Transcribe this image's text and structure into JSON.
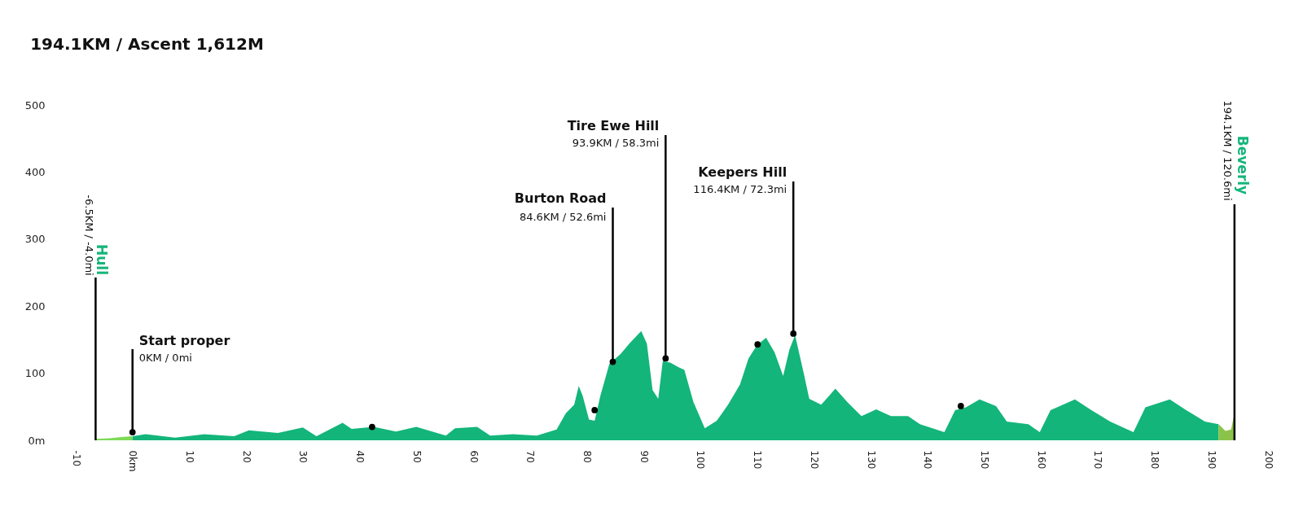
{
  "chart_data": {
    "type": "area",
    "title": "194.1KM / Ascent 1,612M",
    "xlim": [
      -10,
      200
    ],
    "xticks": [
      {
        "value": -10,
        "label": "-10"
      },
      {
        "value": 0,
        "label": "0km"
      },
      10,
      20,
      30,
      40,
      50,
      60,
      70,
      80,
      90,
      100,
      110,
      120,
      130,
      140,
      150,
      160,
      170,
      180,
      190,
      200
    ],
    "ylim": [
      0,
      500
    ],
    "yticks": [
      {
        "value": 0,
        "label": "0m"
      },
      100,
      200,
      300,
      400,
      500
    ],
    "grid": false,
    "series": [
      {
        "color": "#7ed957",
        "x": [
          -6.5,
          -4,
          -2,
          0
        ],
        "values": [
          2,
          3,
          5,
          6
        ]
      },
      {
        "color": "#13b57a",
        "x": [
          0,
          2.3,
          7.5,
          12.7,
          17.9,
          20.5,
          25.6,
          30,
          32.4,
          37,
          38.6,
          42.5,
          46.4,
          50,
          55.2,
          56.8,
          60.7,
          63,
          67,
          71.2,
          74.7,
          76.3,
          77.8,
          78.6,
          79.3,
          80.4,
          81.4,
          82.4,
          84,
          86,
          87.5,
          89.6,
          90.6,
          91.6,
          92.6,
          93.4,
          94.7,
          96.2,
          97.2,
          98.8,
          100.8,
          102.9,
          104.9,
          107,
          108.5,
          110,
          111.6,
          113.1,
          114.6,
          115.7,
          116.7,
          118.2,
          119.2,
          121.3,
          123.8,
          125.9,
          128.4,
          131,
          133.6,
          136.6,
          138.7,
          143,
          144.9,
          146.8,
          149.2,
          152.1,
          154,
          157.8,
          159.8,
          161.7,
          166,
          168.9,
          172.2,
          176.3,
          178.4,
          182.7,
          185.6,
          188.9,
          191.3
        ],
        "values": [
          6,
          9,
          4,
          9,
          6,
          15,
          11,
          19,
          6,
          26,
          17,
          20,
          13,
          20,
          7,
          18,
          20,
          7,
          9,
          7,
          16,
          40,
          53,
          81,
          66,
          31,
          29,
          66,
          114,
          129,
          144,
          163,
          144,
          75,
          62,
          118,
          116,
          109,
          105,
          57,
          18,
          29,
          53,
          83,
          122,
          142,
          153,
          131,
          96,
          135,
          157,
          101,
          62,
          53,
          77,
          57,
          36,
          46,
          36,
          36,
          24,
          12,
          45,
          49,
          61,
          51,
          28,
          24,
          12,
          45,
          61,
          45,
          28,
          12,
          49,
          61,
          45,
          28,
          24
        ]
      },
      {
        "color": "#8bc34a",
        "x": [
          191.3,
          192.5,
          193.5,
          194.1
        ],
        "values": [
          24,
          14,
          16,
          40
        ]
      },
      {
        "type": "scatter",
        "color": "#000000",
        "marker": "circle",
        "x": [
          42.2,
          81.4,
          110.1,
          145.9
        ],
        "values": [
          20,
          45,
          143,
          51
        ]
      }
    ],
    "annotations": [
      {
        "text": "Hull",
        "x": -6.5,
        "y": 0
      },
      {
        "text": "-6.5KM / -4.0mi",
        "x": -6.5,
        "y": 0
      },
      {
        "text": "Start proper",
        "x": 0,
        "y": 12
      },
      {
        "text": "0KM / 0mi",
        "x": 0,
        "y": 12
      },
      {
        "text": "Burton Road",
        "x": 84.6,
        "y": 117
      },
      {
        "text": "84.6KM / 52.6mi",
        "x": 84.6,
        "y": 117
      },
      {
        "text": "Tire Ewe Hill",
        "x": 93.9,
        "y": 122
      },
      {
        "text": "93.9KM / 58.3mi",
        "x": 93.9,
        "y": 122
      },
      {
        "text": "Keepers Hill",
        "x": 116.4,
        "y": 159
      },
      {
        "text": "116.4KM / 72.3mi",
        "x": 116.4,
        "y": 159
      },
      {
        "text": "Beverly",
        "x": 194.1,
        "y": 0
      },
      {
        "text": "194.1KM / 120.6mi",
        "x": 194.1,
        "y": 0
      }
    ]
  }
}
